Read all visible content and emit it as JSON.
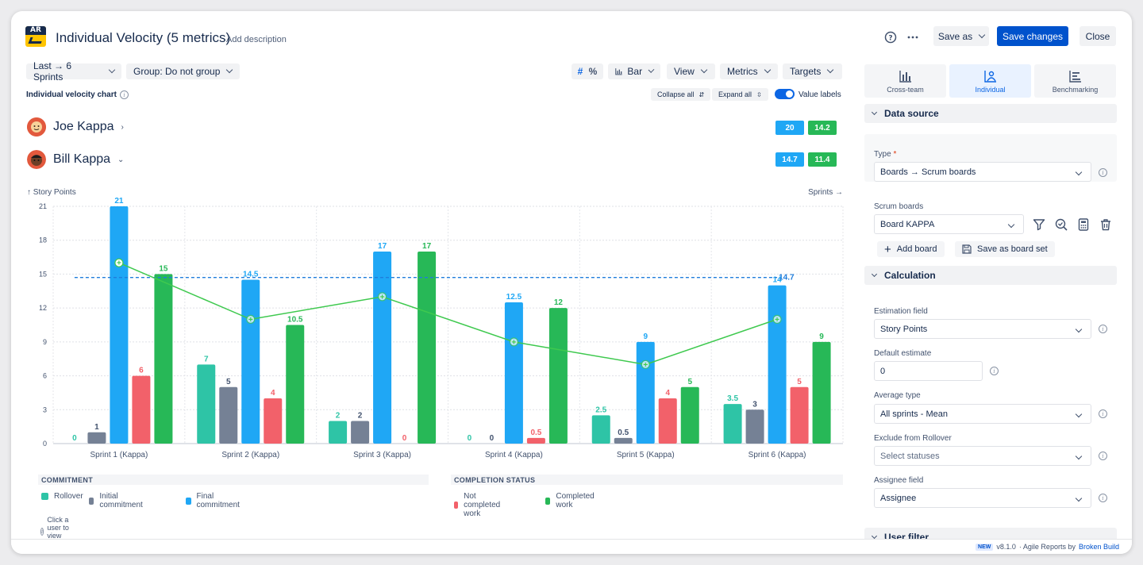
{
  "header": {
    "logo_text": "AR",
    "title": "Individual Velocity (5 metrics)",
    "add_description": "Add description",
    "save_as": "Save as",
    "save_changes": "Save changes",
    "close": "Close"
  },
  "toolbar": {
    "period": "Last → 6 Sprints",
    "group": "Group: Do not group",
    "hash": "#",
    "percent": "%",
    "chart_type": "Bar",
    "view": "View",
    "metrics": "Metrics",
    "targets": "Targets"
  },
  "chart_header": {
    "label": "Individual velocity chart",
    "collapse_all": "Collapse all",
    "expand_all": "Expand all",
    "value_labels": "Value labels",
    "value_labels_on": true
  },
  "users": [
    {
      "name": "Joe Kappa",
      "expanded": false,
      "pill_blue": "20",
      "pill_green": "14.2"
    },
    {
      "name": "Bill Kappa",
      "expanded": true,
      "pill_blue": "14.7",
      "pill_green": "11.4"
    }
  ],
  "chart_data": {
    "type": "bar",
    "ylabel": "↑ Story Points",
    "xlabel": "Sprints →",
    "ylim": [
      0,
      21
    ],
    "yticks": [
      0,
      3,
      6,
      9,
      12,
      15,
      18,
      21
    ],
    "grid": true,
    "categories": [
      "Sprint 1 (Kappa)",
      "Sprint 2 (Kappa)",
      "Sprint 3 (Kappa)",
      "Sprint 4 (Kappa)",
      "Sprint 5 (Kappa)",
      "Sprint 6 (Kappa)"
    ],
    "series": [
      {
        "name": "Rollover",
        "color": "#2ec4a6",
        "values": [
          0,
          7,
          2,
          0,
          2.5,
          3.5
        ]
      },
      {
        "name": "Initial commitment",
        "color": "#758195",
        "values": [
          1,
          5,
          2,
          0,
          0.5,
          3
        ]
      },
      {
        "name": "Final commitment",
        "color": "#1fa7f5",
        "values": [
          21,
          14.5,
          17,
          12.5,
          9,
          14
        ]
      },
      {
        "name": "Not completed work",
        "color": "#f2616a",
        "values": [
          6,
          4,
          0,
          0.5,
          4,
          5
        ]
      },
      {
        "name": "Completed work",
        "color": "#27b857",
        "values": [
          15,
          10.5,
          17,
          12,
          5,
          9
        ]
      }
    ],
    "average_line": {
      "color": "#1f7ddb",
      "value": 14.7,
      "label": "14.7"
    },
    "trend_line": {
      "color": "#3fc94f",
      "values": [
        16,
        11,
        13,
        9,
        7,
        11
      ]
    }
  },
  "legend": {
    "commitment_title": "COMMITMENT",
    "commitment_items": [
      "Rollover",
      "Initial commitment",
      "Final commitment"
    ],
    "completion_title": "COMPLETION STATUS",
    "completion_items": [
      "Not completed work",
      "Completed work"
    ],
    "hint": "Click a user to view issues"
  },
  "panel": {
    "tabs": [
      "Cross-team",
      "Individual",
      "Benchmarking"
    ],
    "active_tab": "Individual",
    "data_source_title": "Data source",
    "type_label": "Type",
    "type_value": "Boards → Scrum boards",
    "scrum_boards_label": "Scrum boards",
    "board_value": "Board KAPPA",
    "add_board": "Add board",
    "save_board_set": "Save as board set",
    "calculation_title": "Calculation",
    "estimation_label": "Estimation field",
    "estimation_value": "Story Points",
    "default_estimate_label": "Default estimate",
    "default_estimate_value": "0",
    "average_type_label": "Average type",
    "average_type_value": "All sprints - Mean",
    "exclude_rollover_label": "Exclude from Rollover",
    "exclude_rollover_placeholder": "Select statuses",
    "assignee_field_label": "Assignee field",
    "assignee_value": "Assignee",
    "next_section": "User filter"
  },
  "footer": {
    "new_badge": "NEW",
    "version": "v8.1.0",
    "by": "· Agile Reports by",
    "brand": "Broken Build"
  }
}
